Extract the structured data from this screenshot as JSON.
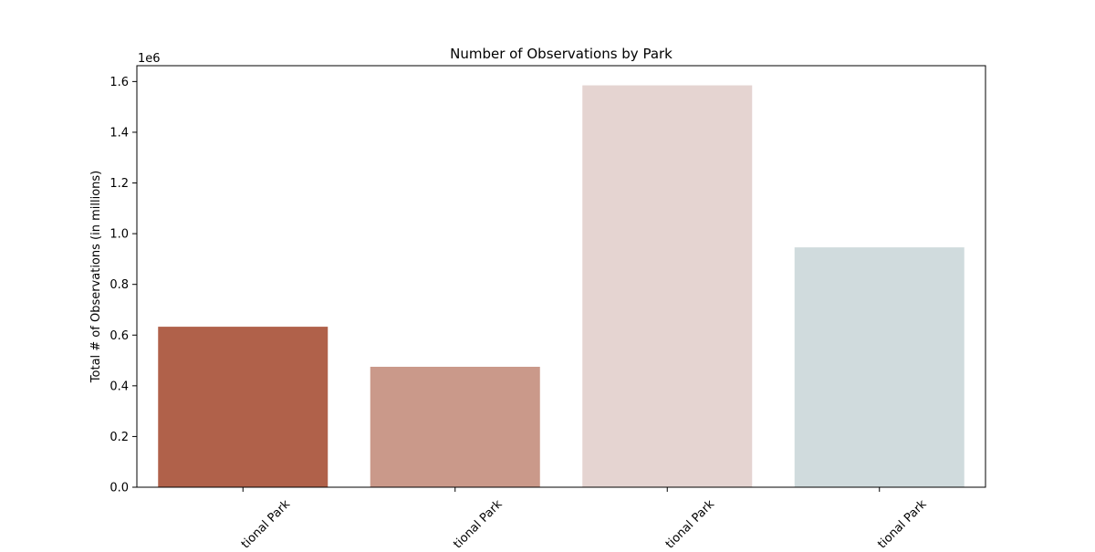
{
  "chart_data": {
    "type": "bar",
    "title": "Number of Observations by Park",
    "xlabel": "",
    "ylabel": "Total # of Observations (in millions)",
    "offset_text": "1e6",
    "categories": [
      "tional Park",
      "tional Park",
      "tional Park",
      "tional Park"
    ],
    "values": [
      633000,
      475000,
      1585000,
      946000
    ],
    "colors": [
      "#b0614a",
      "#ca998a",
      "#e5d4d1",
      "#d0dbdd"
    ],
    "ylim": [
      0,
      1662500
    ],
    "yticks": [
      0,
      200000,
      400000,
      600000,
      800000,
      1000000,
      1200000,
      1400000,
      1600000
    ],
    "ytick_labels": [
      "0.0",
      "0.2",
      "0.4",
      "0.6",
      "0.8",
      "1.0",
      "1.2",
      "1.4",
      "1.6"
    ],
    "grid": false,
    "legend": "none"
  }
}
